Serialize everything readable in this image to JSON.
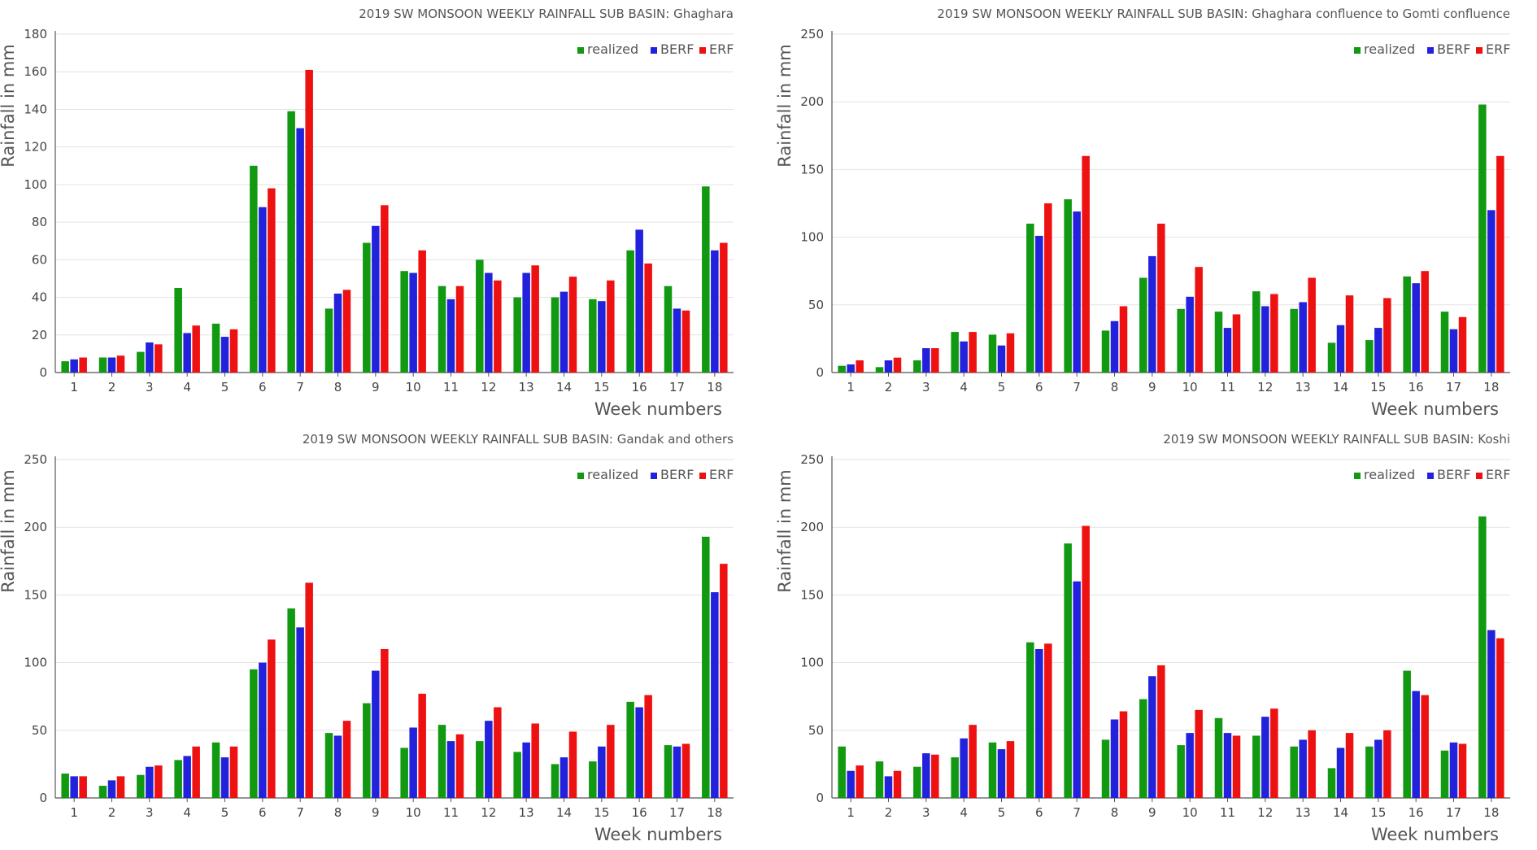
{
  "colors": {
    "realized": "#119911",
    "BERF": "#2222dd",
    "ERF": "#ee1111",
    "grid": "#e3e3e3",
    "axis": "#555555"
  },
  "chart_data": [
    {
      "type": "bar",
      "title": "2019 SW MONSOON WEEKLY RAINFALL SUB BASIN: Ghaghara",
      "xlabel": "Week numbers",
      "ylabel": "Rainfall in mm",
      "ylim": [
        0,
        180
      ],
      "yticks": [
        0,
        20,
        40,
        60,
        80,
        100,
        120,
        140,
        160,
        180
      ],
      "grid": true,
      "legend": "top-right",
      "categories": [
        "1",
        "2",
        "3",
        "4",
        "5",
        "6",
        "7",
        "8",
        "9",
        "10",
        "11",
        "12",
        "13",
        "14",
        "15",
        "16",
        "17",
        "18"
      ],
      "series": [
        {
          "name": "realized",
          "values": [
            6,
            8,
            11,
            45,
            26,
            110,
            139,
            34,
            69,
            54,
            46,
            60,
            40,
            40,
            39,
            65,
            46,
            99
          ]
        },
        {
          "name": "BERF",
          "values": [
            7,
            8,
            16,
            21,
            19,
            88,
            130,
            42,
            78,
            53,
            39,
            53,
            53,
            43,
            38,
            76,
            34,
            65
          ]
        },
        {
          "name": "ERF",
          "values": [
            8,
            9,
            15,
            25,
            23,
            98,
            161,
            44,
            89,
            65,
            46,
            49,
            57,
            51,
            49,
            58,
            33,
            69
          ]
        }
      ]
    },
    {
      "type": "bar",
      "title": "2019 SW MONSOON WEEKLY RAINFALL SUB BASIN: Ghaghara confluence to Gomti confluence",
      "xlabel": "Week numbers",
      "ylabel": "Rainfall in mm",
      "ylim": [
        0,
        250
      ],
      "yticks": [
        0,
        50,
        100,
        150,
        200,
        250
      ],
      "grid": true,
      "legend": "top-right",
      "categories": [
        "1",
        "2",
        "3",
        "4",
        "5",
        "6",
        "7",
        "8",
        "9",
        "10",
        "11",
        "12",
        "13",
        "14",
        "15",
        "16",
        "17",
        "18"
      ],
      "series": [
        {
          "name": "realized",
          "values": [
            5,
            4,
            9,
            30,
            28,
            110,
            128,
            31,
            70,
            47,
            45,
            60,
            47,
            22,
            24,
            71,
            45,
            198
          ]
        },
        {
          "name": "BERF",
          "values": [
            6,
            9,
            18,
            23,
            20,
            101,
            119,
            38,
            86,
            56,
            33,
            49,
            52,
            35,
            33,
            66,
            32,
            120
          ]
        },
        {
          "name": "ERF",
          "values": [
            9,
            11,
            18,
            30,
            29,
            125,
            160,
            49,
            110,
            78,
            43,
            58,
            70,
            57,
            55,
            75,
            41,
            160
          ]
        }
      ]
    },
    {
      "type": "bar",
      "title": "2019 SW MONSOON WEEKLY RAINFALL SUB BASIN: Gandak and others",
      "xlabel": "Week numbers",
      "ylabel": "Rainfall in mm",
      "ylim": [
        0,
        250
      ],
      "yticks": [
        0,
        50,
        100,
        150,
        200,
        250
      ],
      "grid": true,
      "legend": "top-right",
      "categories": [
        "1",
        "2",
        "3",
        "4",
        "5",
        "6",
        "7",
        "8",
        "9",
        "10",
        "11",
        "12",
        "13",
        "14",
        "15",
        "16",
        "17",
        "18"
      ],
      "series": [
        {
          "name": "realized",
          "values": [
            18,
            9,
            17,
            28,
            41,
            95,
            140,
            48,
            70,
            37,
            54,
            42,
            34,
            25,
            27,
            71,
            39,
            193
          ]
        },
        {
          "name": "BERF",
          "values": [
            16,
            13,
            23,
            31,
            30,
            100,
            126,
            46,
            94,
            52,
            42,
            57,
            41,
            30,
            38,
            67,
            38,
            152
          ]
        },
        {
          "name": "ERF",
          "values": [
            16,
            16,
            24,
            38,
            38,
            117,
            159,
            57,
            110,
            77,
            47,
            67,
            55,
            49,
            54,
            76,
            40,
            173
          ]
        }
      ]
    },
    {
      "type": "bar",
      "title": "2019 SW MONSOON WEEKLY RAINFALL SUB BASIN: Koshi",
      "xlabel": "Week numbers",
      "ylabel": "Rainfall in mm",
      "ylim": [
        0,
        250
      ],
      "yticks": [
        0,
        50,
        100,
        150,
        200,
        250
      ],
      "grid": true,
      "legend": "top-right",
      "categories": [
        "1",
        "2",
        "3",
        "4",
        "5",
        "6",
        "7",
        "8",
        "9",
        "10",
        "11",
        "12",
        "13",
        "14",
        "15",
        "16",
        "17",
        "18"
      ],
      "series": [
        {
          "name": "realized",
          "values": [
            38,
            27,
            23,
            30,
            41,
            115,
            188,
            43,
            73,
            39,
            59,
            46,
            38,
            22,
            38,
            94,
            35,
            208
          ]
        },
        {
          "name": "BERF",
          "values": [
            20,
            16,
            33,
            44,
            36,
            110,
            160,
            58,
            90,
            48,
            48,
            60,
            43,
            37,
            43,
            79,
            41,
            124
          ]
        },
        {
          "name": "ERF",
          "values": [
            24,
            20,
            32,
            54,
            42,
            114,
            201,
            64,
            98,
            65,
            46,
            66,
            50,
            48,
            50,
            76,
            40,
            118
          ]
        }
      ]
    }
  ]
}
